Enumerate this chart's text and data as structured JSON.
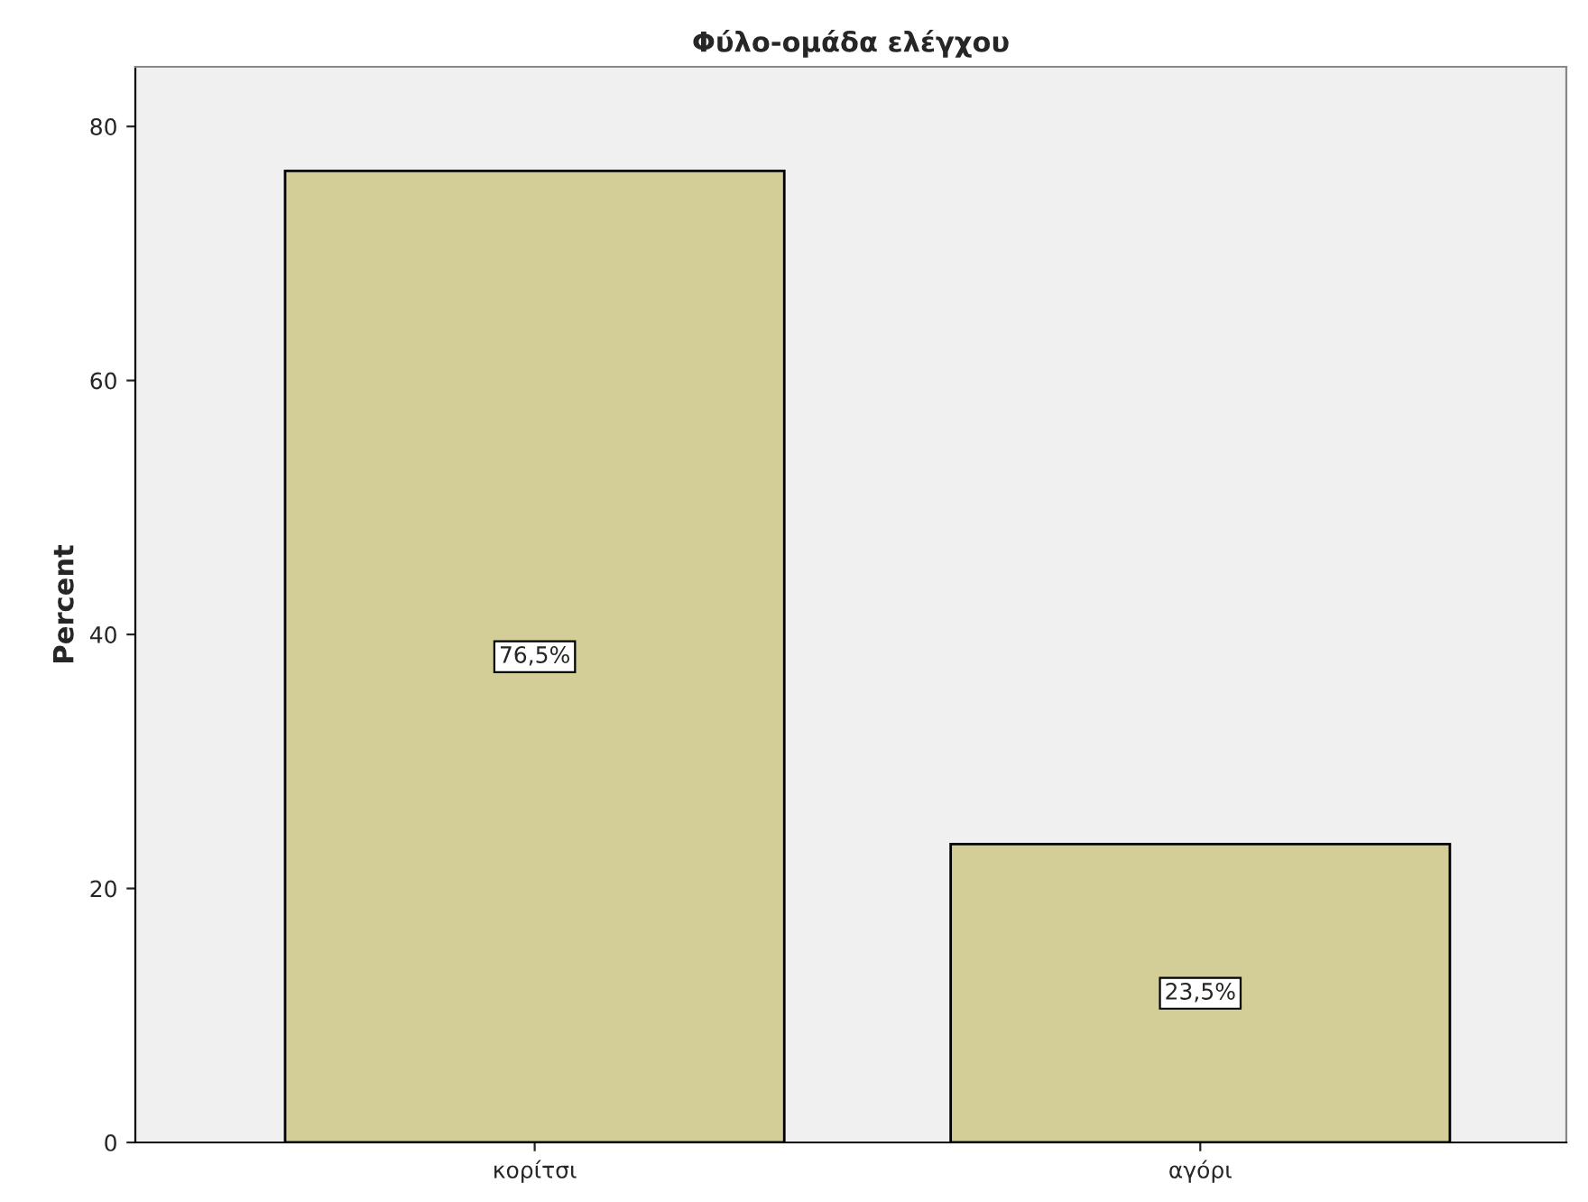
{
  "chart_data": {
    "type": "bar",
    "title": "Φύλο-ομάδα ελέγχου",
    "ylabel": "Percent",
    "categories": [
      "κορίτσι",
      "αγόρι"
    ],
    "values": [
      76.5,
      23.5
    ],
    "value_labels": [
      "76,5%",
      "23,5%"
    ],
    "color": "#d3ce98",
    "ylim": [
      0,
      84.7
    ],
    "yticks": [
      0,
      20,
      40,
      60,
      80
    ],
    "grid": false,
    "legend": false
  }
}
